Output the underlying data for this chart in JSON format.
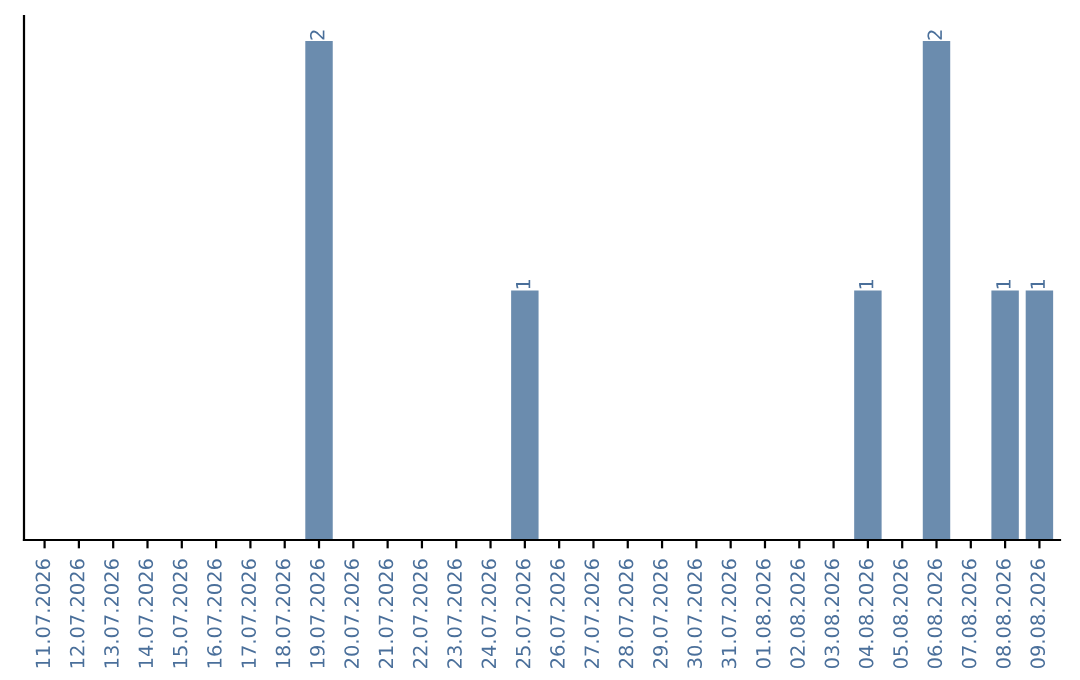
{
  "chart_data": {
    "type": "bar",
    "categories": [
      "11.07.2026",
      "12.07.2026",
      "13.07.2026",
      "14.07.2026",
      "15.07.2026",
      "16.07.2026",
      "17.07.2026",
      "18.07.2026",
      "19.07.2026",
      "20.07.2026",
      "21.07.2026",
      "22.07.2026",
      "23.07.2026",
      "24.07.2026",
      "25.07.2026",
      "26.07.2026",
      "27.07.2026",
      "28.07.2026",
      "29.07.2026",
      "30.07.2026",
      "31.07.2026",
      "01.08.2026",
      "02.08.2026",
      "03.08.2026",
      "04.08.2026",
      "05.08.2026",
      "06.08.2026",
      "07.08.2026",
      "08.08.2026",
      "09.08.2026"
    ],
    "values": [
      0,
      0,
      0,
      0,
      0,
      0,
      0,
      0,
      2,
      0,
      0,
      0,
      0,
      0,
      1,
      0,
      0,
      0,
      0,
      0,
      0,
      0,
      0,
      0,
      1,
      0,
      2,
      0,
      1,
      1
    ],
    "color": "#6b8cae",
    "value_labels": [
      null,
      null,
      null,
      null,
      null,
      null,
      null,
      null,
      "2",
      null,
      null,
      null,
      null,
      null,
      "1",
      null,
      null,
      null,
      null,
      null,
      null,
      null,
      null,
      null,
      "1",
      null,
      "2",
      null,
      "1",
      "1"
    ],
    "tick_labels": "x",
    "grid": false,
    "legend": false
  }
}
